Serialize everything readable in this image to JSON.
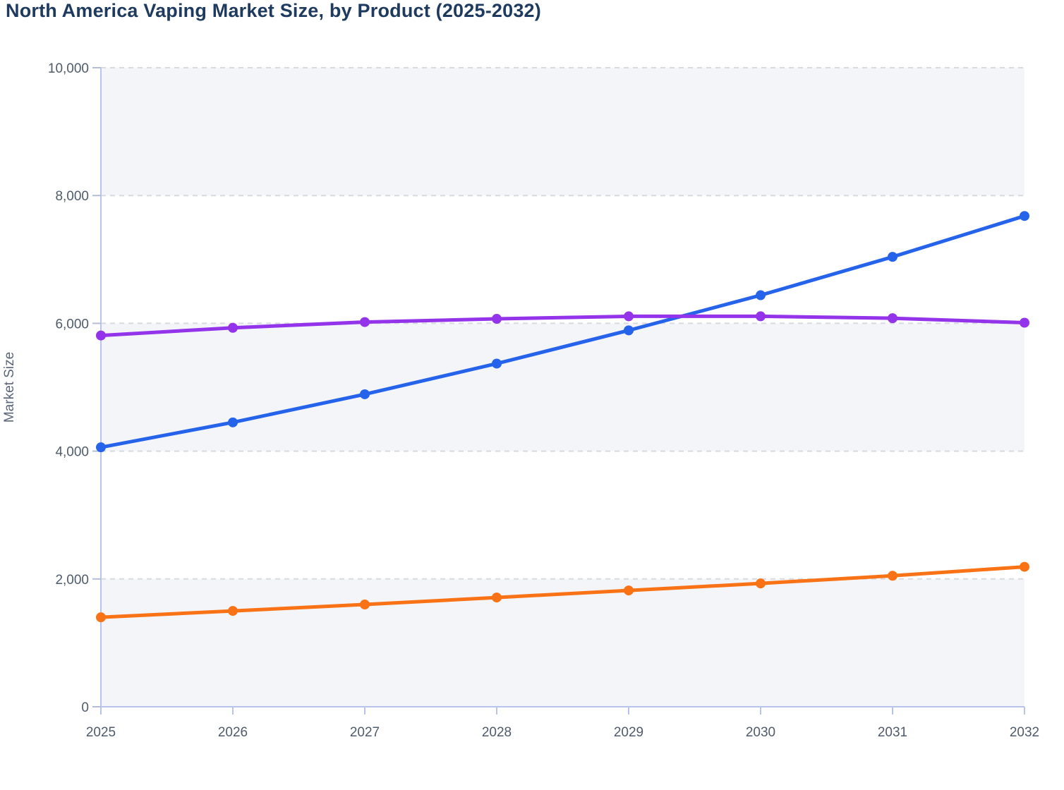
{
  "page": {
    "title": "North America Vaping Market Size, by Product (2025-2032)"
  },
  "chart_data": {
    "type": "line",
    "title": "North America Vaping Market Size, by Product (2025-2032)",
    "xlabel": "",
    "ylabel": "Market Size",
    "x": [
      2025,
      2026,
      2027,
      2028,
      2029,
      2030,
      2031,
      2032
    ],
    "series": [
      {
        "name": "series-blue",
        "color": "#2563eb",
        "values": [
          4060,
          4450,
          4890,
          5370,
          5890,
          6440,
          7040,
          7680
        ]
      },
      {
        "name": "series-purple",
        "color": "#9333ea",
        "values": [
          5810,
          5930,
          6020,
          6070,
          6110,
          6110,
          6080,
          6010
        ]
      },
      {
        "name": "series-orange",
        "color": "#f97316",
        "values": [
          1400,
          1500,
          1600,
          1710,
          1820,
          1930,
          2050,
          2190
        ]
      }
    ],
    "ylim": [
      0,
      10000
    ],
    "ytick_step": 2000,
    "ytick_labels": [
      "0",
      "2,000",
      "4,000",
      "6,000",
      "8,000",
      "10,000"
    ],
    "grid": "horizontal-dashed",
    "row_bands": "alternating, shaded from 0",
    "legend": "none",
    "markers": "filled circles"
  },
  "style": {
    "title_color": "#1e3a5f",
    "axis_line_color": "#b8c4ec",
    "y_tick_color": "#b4bdd6",
    "grid_color": "#d9dadf",
    "band_color": "#f3f5f9",
    "tick_label_color": "#4f5b6b",
    "y_axis_title_color": "#5a6577"
  }
}
